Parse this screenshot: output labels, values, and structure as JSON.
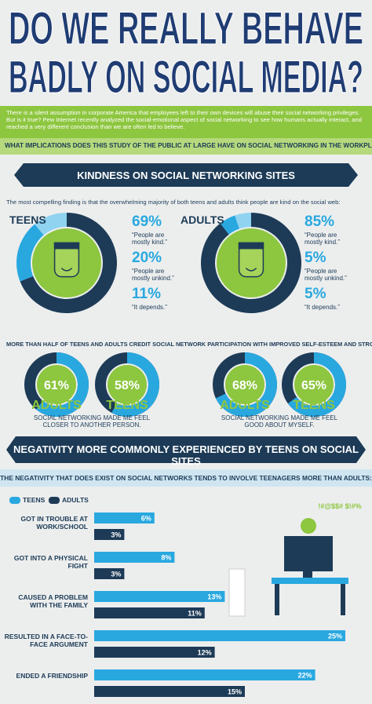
{
  "header": {
    "title_line1": "DO WE REALLY BEHAVE",
    "title_line2": "BADLY ON SOCIAL MEDIA?"
  },
  "intro": {
    "text": "There is a silent assumption in corporate America that employees left to their own devices will abuse their social networking privileges. But is it true? Pew Internet recently analyzed the social-emotional aspect of social networking to see how humans actually interact, and reached a very different conclusion than we are often led to believe.",
    "question": "WHAT IMPLICATIONS DOES THIS STUDY OF THE PUBLIC AT LARGE HAVE ON SOCIAL NETWORKING IN THE WORKPLACE?"
  },
  "kindness": {
    "heading": "KINDNESS ON SOCIAL NETWORKING SITES",
    "finding": "The most compelling finding is that the overwhelming majority of both teens and adults think people are kind on the social web:",
    "colors": [
      "#1d3b57",
      "#29a8e0",
      "#8fd3f0"
    ],
    "groups": [
      {
        "name": "TEENS",
        "values": [
          69,
          20,
          11
        ],
        "value_labels": [
          "69%",
          "20%",
          "11%"
        ],
        "captions": [
          "“People are mostly kind.”",
          "“People are mostly unkind.”",
          "“It depends.”"
        ]
      },
      {
        "name": "ADULTS",
        "values": [
          85,
          5,
          5
        ],
        "value_labels": [
          "85%",
          "5%",
          "5%"
        ],
        "captions": [
          "“People are mostly kind.”",
          "“People are mostly unkind.”",
          "“It depends.”"
        ]
      }
    ]
  },
  "self_esteem": {
    "heading": "MORE THAN HALF OF TEENS AND ADULTS CREDIT SOCIAL NETWORK PARTICIPATION WITH IMPROVED SELF-ESTEEM AND STRONGER BONDS WITH OTHERS:",
    "panels": [
      {
        "caption": "SOCIAL NETWORKING MADE ME FEEL CLOSER TO ANOTHER PERSON.",
        "groups": [
          {
            "name": "ADULTS",
            "value": 61,
            "value_label": "61%"
          },
          {
            "name": "TEENS",
            "value": 58,
            "value_label": "58%"
          }
        ]
      },
      {
        "caption": "SOCIAL NETWORKING MADE ME FEEL GOOD ABOUT MYSELF.",
        "groups": [
          {
            "name": "ADULTS",
            "value": 68,
            "value_label": "68%"
          },
          {
            "name": "TEENS",
            "value": 65,
            "value_label": "65%"
          }
        ]
      }
    ]
  },
  "negativity": {
    "heading": "NEGATIVITY MORE COMMONLY EXPERIENCED BY TEENS ON SOCIAL SITES",
    "subheading": "THE NEGATIVITY THAT DOES EXIST ON SOCIAL NETWORKS TENDS TO INVOLVE TEENAGERS MORE THAN ADULTS:",
    "sign_text": "!#@$$# $!#%",
    "chart": {
      "type": "bar",
      "categories": [
        "GOT IN TROUBLE AT WORK/SCHOOL",
        "GOT INTO A PHYSICAL FIGHT",
        "CAUSED A PROBLEM WITH THE FAMILY",
        "RESULTED IN A FACE-TO-FACE ARGUMENT",
        "ENDED A FRIENDSHIP"
      ],
      "series": [
        {
          "name": "TEENS",
          "color": "#29a8e0",
          "values": [
            6,
            8,
            13,
            25,
            22
          ],
          "value_labels": [
            "6%",
            "8%",
            "13%",
            "25%",
            "22%"
          ]
        },
        {
          "name": "ADULTS",
          "color": "#1d3b57",
          "values": [
            3,
            3,
            11,
            12,
            15
          ],
          "value_labels": [
            "3%",
            "3%",
            "11%",
            "12%",
            "15%"
          ]
        }
      ]
    }
  }
}
